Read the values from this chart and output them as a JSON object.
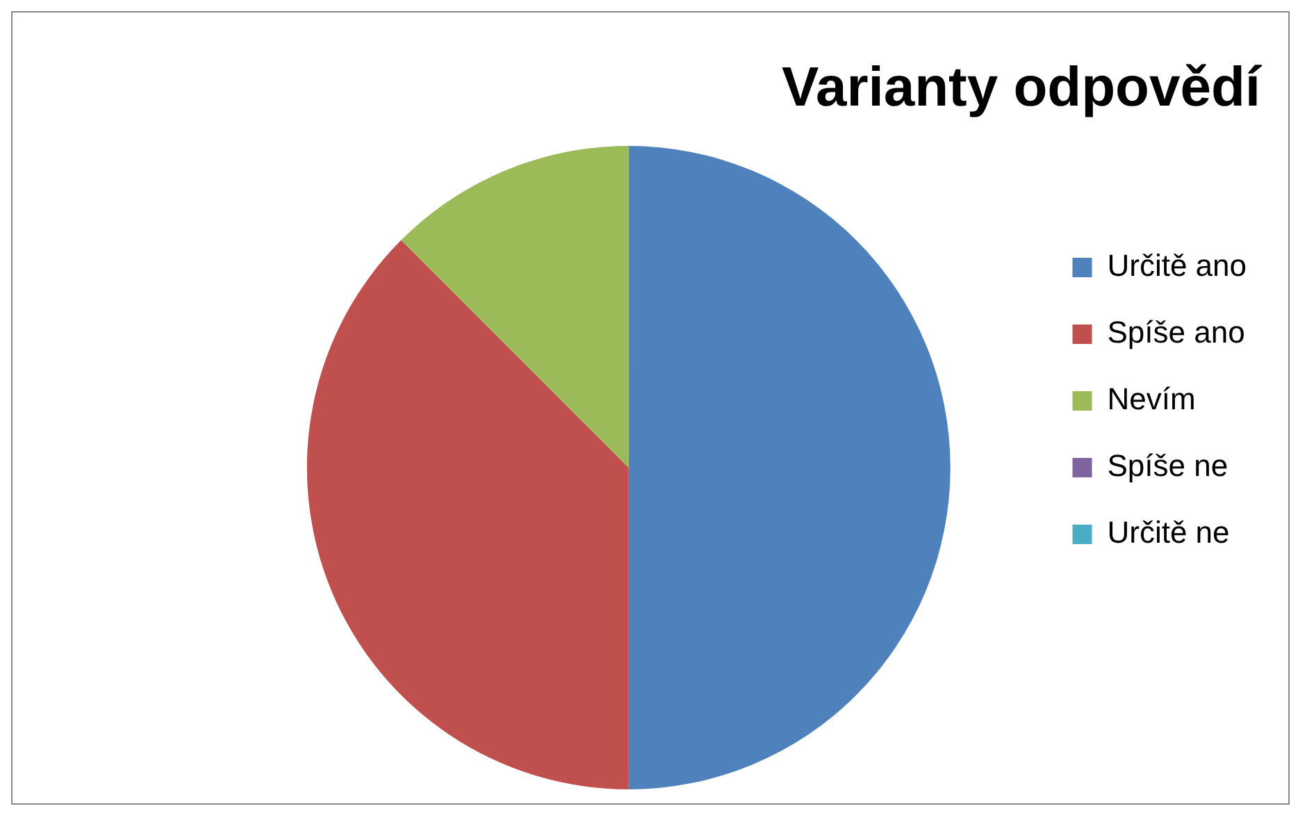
{
  "chart_data": {
    "type": "pie",
    "title": "Varianty odpovědí",
    "categories": [
      "Určitě ano",
      "Spíše ano",
      "Nevím",
      "Spíše ne",
      "Určitě ne"
    ],
    "values": [
      50,
      37.5,
      12.5,
      0,
      0
    ],
    "colors": [
      "#4f81bd",
      "#c0504d",
      "#9bbb59",
      "#8064a2",
      "#4bacc6"
    ],
    "legend": "right"
  }
}
